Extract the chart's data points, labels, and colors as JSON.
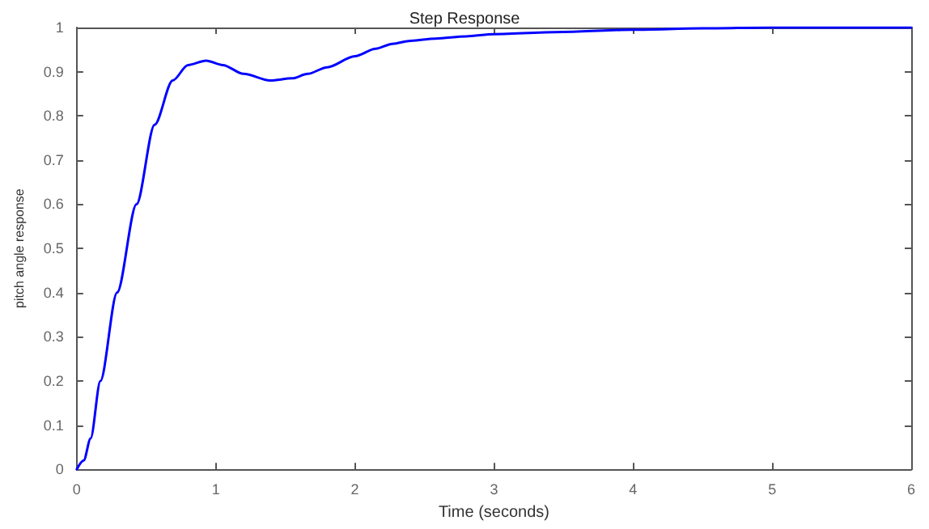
{
  "chart_data": {
    "type": "line",
    "title": "Step Response",
    "xlabel": "Time (seconds)",
    "ylabel": "pitch angle response",
    "x": [
      0,
      0.05,
      0.1,
      0.17,
      0.29,
      0.43,
      0.56,
      0.69,
      0.8,
      0.93,
      1.05,
      1.2,
      1.39,
      1.55,
      1.66,
      1.8,
      2.0,
      2.15,
      2.27,
      2.4,
      2.58,
      2.8,
      3.0,
      3.5,
      4.0,
      4.5,
      5.0,
      5.5,
      6.0
    ],
    "series": [
      {
        "color": "#0000ff",
        "values": [
          0,
          0.02,
          0.07,
          0.2,
          0.4,
          0.6,
          0.78,
          0.88,
          0.915,
          0.925,
          0.915,
          0.895,
          0.88,
          0.885,
          0.895,
          0.91,
          0.935,
          0.952,
          0.963,
          0.97,
          0.975,
          0.98,
          0.985,
          0.99,
          0.995,
          0.998,
          1.0,
          1.0,
          1.0
        ]
      }
    ],
    "xlim": [
      0,
      6
    ],
    "xticks": [
      0,
      1,
      2,
      3,
      4,
      5,
      6
    ],
    "ylim": [
      0,
      1
    ],
    "yticks": [
      0,
      0.1,
      0.2,
      0.3,
      0.4,
      0.5,
      0.6,
      0.7,
      0.8,
      0.9,
      1
    ],
    "grid": false,
    "marker": "none",
    "line_style": "solid"
  }
}
